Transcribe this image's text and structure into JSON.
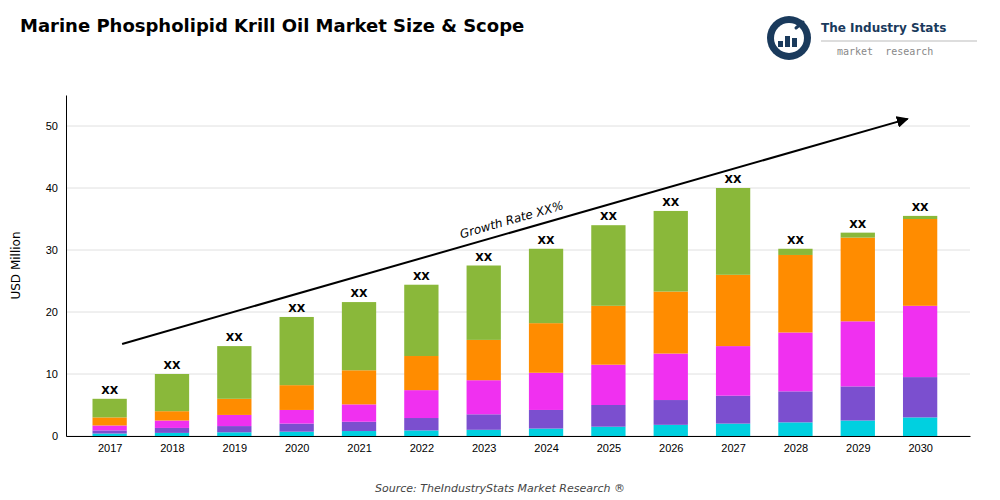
{
  "chart_data": {
    "type": "bar",
    "stacked": true,
    "title": "Marine Phospholipid Krill Oil Market Size & Scope",
    "y_label": "USD Million",
    "x": [
      2017,
      2018,
      2019,
      2020,
      2021,
      2022,
      2023,
      2024,
      2025,
      2026,
      2027,
      2028,
      2029,
      2030
    ],
    "xlim": [
      2016.3,
      2030.8
    ],
    "xticks": [
      2017,
      2018,
      2019,
      2020,
      2021,
      2022,
      2023,
      2024,
      2025,
      2026,
      2027,
      2028,
      2029,
      2030
    ],
    "ylim": [
      0,
      55
    ],
    "yticks": [
      0,
      10,
      20,
      30,
      40,
      50
    ],
    "grid": true,
    "series": [
      {
        "color": "#00d0e0",
        "values": [
          0.4,
          0.5,
          0.6,
          0.7,
          0.8,
          0.9,
          1.0,
          1.2,
          1.5,
          1.8,
          2.0,
          2.2,
          2.5,
          3.0
        ]
      },
      {
        "color": "#7b4fcf",
        "values": [
          0.5,
          0.8,
          1.0,
          1.3,
          1.5,
          2.0,
          2.5,
          3.0,
          3.5,
          4.0,
          4.5,
          5.0,
          5.5,
          6.5
        ]
      },
      {
        "color": "#f030f0",
        "values": [
          0.8,
          1.2,
          1.8,
          2.2,
          2.8,
          4.5,
          5.5,
          6.0,
          6.5,
          7.5,
          8.0,
          9.5,
          10.5,
          11.5
        ]
      },
      {
        "color": "#ff8c00",
        "values": [
          1.3,
          1.5,
          2.6,
          4.0,
          5.5,
          5.5,
          6.5,
          8.0,
          9.5,
          10.0,
          11.5,
          12.5,
          13.5,
          14.0
        ]
      },
      {
        "color": "#8ab83a",
        "values": [
          3.0,
          6.0,
          8.5,
          11.0,
          11.0,
          11.5,
          12.0,
          12.0,
          13.0,
          13.0,
          14.0,
          1.0,
          0.8,
          0.5
        ]
      }
    ],
    "annotations": [
      {
        "text": "XX",
        "x": 2017
      },
      {
        "text": "XX",
        "x": 2018
      },
      {
        "text": "XX",
        "x": 2019
      },
      {
        "text": "XX",
        "x": 2020
      },
      {
        "text": "XX",
        "x": 2021
      },
      {
        "text": "XX",
        "x": 2022
      },
      {
        "text": "XX",
        "x": 2023
      },
      {
        "text": "XX",
        "x": 2024
      },
      {
        "text": "XX",
        "x": 2025
      },
      {
        "text": "XX",
        "x": 2026
      },
      {
        "text": "XX",
        "x": 2027
      },
      {
        "text": "XX",
        "x": 2028
      },
      {
        "text": "XX",
        "x": 2029
      },
      {
        "text": "XX",
        "x": 2030
      },
      {
        "text": "Growth Rate XX%"
      },
      {
        "text": "Source: TheIndustryStats Market Research ®"
      },
      {
        "text": "The Industry Stats"
      },
      {
        "text": "market  research"
      }
    ]
  }
}
